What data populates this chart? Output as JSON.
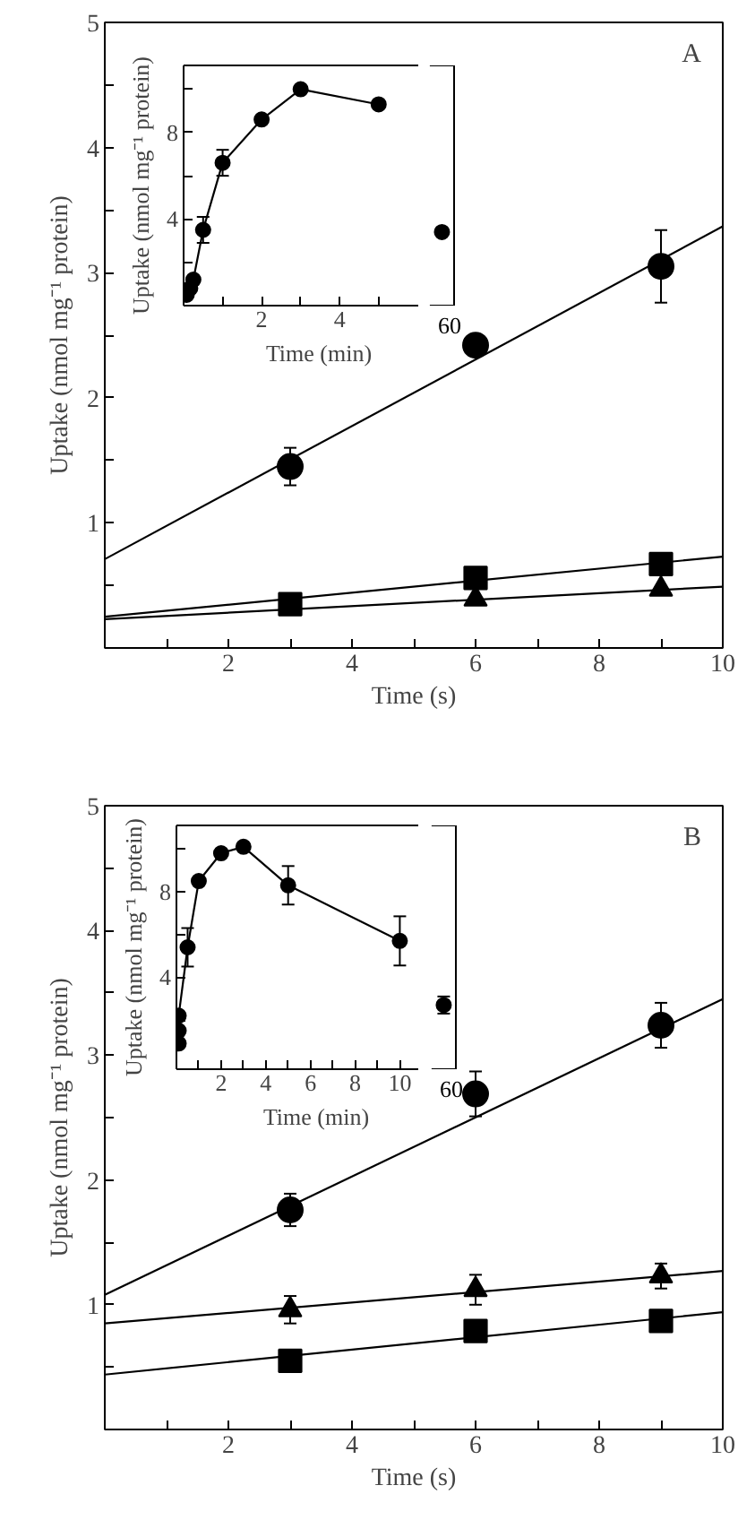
{
  "chart_data": [
    {
      "type": "scatter",
      "xlabel": "Time (s)",
      "ylabel": "Uptake (nmol mg⁻¹ protein)",
      "annotations": [
        "A"
      ],
      "xlim": [
        0,
        10
      ],
      "ylim": [
        0,
        5
      ],
      "xticks": [
        {
          "value": 1,
          "label": null
        },
        2,
        {
          "value": 3,
          "label": null
        },
        4,
        {
          "value": 5,
          "label": null
        },
        6,
        {
          "value": 7,
          "label": null
        },
        8,
        {
          "value": 9,
          "label": null
        },
        10
      ],
      "yticks": [
        {
          "value": 0.5,
          "label": null
        },
        1,
        {
          "value": 1.5,
          "label": null
        },
        2,
        {
          "value": 2.5,
          "label": null
        },
        3,
        {
          "value": 3.5,
          "label": null
        },
        4,
        {
          "value": 4.5,
          "label": null
        },
        5
      ],
      "series": [
        {
          "type": "line",
          "color": "#000000",
          "x": [
            0,
            10
          ],
          "values": [
            0.71,
            3.37
          ]
        },
        {
          "type": "line",
          "color": "#000000",
          "x": [
            0,
            10
          ],
          "values": [
            0.25,
            0.73
          ]
        },
        {
          "type": "line",
          "color": "#000000",
          "x": [
            0,
            10
          ],
          "values": [
            0.23,
            0.49
          ]
        },
        {
          "type": "scatter",
          "marker": "circle",
          "color": "#000000",
          "x": [
            3,
            6,
            9
          ],
          "values": [
            1.45,
            2.42,
            3.05
          ],
          "errors": [
            0.15,
            null,
            0.29
          ]
        },
        {
          "type": "scatter",
          "marker": "square",
          "color": "#000000",
          "x": [
            3,
            6,
            9
          ],
          "values": [
            0.35,
            0.56,
            0.67
          ]
        },
        {
          "type": "scatter",
          "marker": "triangle",
          "color": "#000000",
          "x": [
            6,
            9
          ],
          "values": [
            0.39,
            0.47
          ]
        }
      ]
    },
    {
      "type": "line",
      "marker": "circle",
      "xlabel": "Time (min)",
      "ylabel": "Uptake (nmol mg⁻¹ protein)",
      "xlim": [
        0,
        6
      ],
      "ylim": [
        0,
        11.1
      ],
      "xticks": [
        {
          "value": 1,
          "label": null
        },
        2,
        {
          "value": 3,
          "label": null
        },
        4,
        {
          "value": 5,
          "label": null
        }
      ],
      "yticks": [
        {
          "value": 2,
          "label": null
        },
        4,
        {
          "value": 6,
          "label": null
        },
        8,
        {
          "value": 10,
          "label": null
        }
      ],
      "series": [
        {
          "color": "#000000",
          "x": [
            0.08,
            0.17,
            0.25,
            0.5,
            1,
            2,
            3,
            5
          ],
          "values": [
            0.5,
            0.8,
            1.2,
            3.5,
            6.6,
            8.6,
            10.0,
            9.3
          ],
          "errors": [
            null,
            null,
            null,
            0.6,
            0.6,
            null,
            null,
            null
          ]
        }
      ]
    },
    {
      "type": "scatter",
      "marker": "circle",
      "tick_labels": "x",
      "categories": [
        "60"
      ],
      "ylim": [
        0,
        11.1
      ],
      "series": [
        {
          "color": "#000000",
          "values": [
            3.4
          ]
        }
      ]
    },
    {
      "type": "scatter",
      "xlabel": "Time (s)",
      "ylabel": "Uptake (nmol mg⁻¹ protein)",
      "annotations": [
        "B"
      ],
      "xlim": [
        0,
        10
      ],
      "ylim": [
        0,
        5
      ],
      "xticks": [
        {
          "value": 1,
          "label": null
        },
        2,
        {
          "value": 3,
          "label": null
        },
        4,
        {
          "value": 5,
          "label": null
        },
        6,
        {
          "value": 7,
          "label": null
        },
        8,
        {
          "value": 9,
          "label": null
        },
        10
      ],
      "yticks": [
        {
          "value": 0.5,
          "label": null
        },
        1,
        {
          "value": 1.5,
          "label": null
        },
        2,
        {
          "value": 2.5,
          "label": null
        },
        3,
        {
          "value": 3.5,
          "label": null
        },
        4,
        {
          "value": 4.5,
          "label": null
        },
        5
      ],
      "series": [
        {
          "type": "line",
          "color": "#000000",
          "x": [
            0,
            10
          ],
          "values": [
            1.08,
            3.45
          ]
        },
        {
          "type": "line",
          "color": "#000000",
          "x": [
            0,
            10
          ],
          "values": [
            0.85,
            1.27
          ]
        },
        {
          "type": "line",
          "color": "#000000",
          "x": [
            0,
            10
          ],
          "values": [
            0.44,
            0.94
          ]
        },
        {
          "type": "scatter",
          "marker": "circle",
          "color": "#000000",
          "x": [
            3,
            6,
            9
          ],
          "values": [
            1.76,
            2.69,
            3.24
          ],
          "errors": [
            0.13,
            0.18,
            0.18
          ]
        },
        {
          "type": "scatter",
          "marker": "triangle",
          "color": "#000000",
          "x": [
            3,
            6,
            9
          ],
          "values": [
            0.96,
            1.12,
            1.23
          ],
          "errors": [
            0.11,
            0.12,
            0.1
          ]
        },
        {
          "type": "scatter",
          "marker": "square",
          "color": "#000000",
          "x": [
            3,
            6,
            9
          ],
          "values": [
            0.55,
            0.79,
            0.87
          ],
          "errors": [
            null,
            0.08,
            null
          ]
        }
      ]
    },
    {
      "type": "line",
      "marker": "circle",
      "xlabel": "Time (min)",
      "ylabel": "Uptake (nmol mg⁻¹ protein)",
      "xlim": [
        0,
        10.8
      ],
      "ylim": [
        -0.3,
        11.1
      ],
      "xticks": [
        {
          "value": 1,
          "label": null
        },
        2,
        {
          "value": 3,
          "label": null
        },
        4,
        {
          "value": 5,
          "label": null
        },
        6,
        {
          "value": 7,
          "label": null
        },
        8,
        {
          "value": 9,
          "label": null
        },
        10
      ],
      "yticks": [
        {
          "value": 2,
          "label": null
        },
        4,
        {
          "value": 6,
          "label": null
        },
        8,
        {
          "value": 10,
          "label": null
        }
      ],
      "series": [
        {
          "color": "#000000",
          "x": [
            0.1,
            0.1,
            0.1,
            0.5,
            1,
            2,
            3,
            5,
            10
          ],
          "values": [
            0.9,
            1.5,
            2.2,
            5.4,
            8.5,
            9.8,
            10.1,
            8.3,
            5.7
          ],
          "errors": [
            null,
            null,
            null,
            0.9,
            null,
            null,
            null,
            0.9,
            1.15
          ]
        }
      ]
    },
    {
      "type": "scatter",
      "marker": "circle",
      "tick_labels": "x",
      "categories": [
        "60"
      ],
      "ylim": [
        -0.3,
        11.1
      ],
      "series": [
        {
          "color": "#000000",
          "values": [
            2.7
          ],
          "errors": [
            0.4
          ]
        }
      ]
    }
  ]
}
